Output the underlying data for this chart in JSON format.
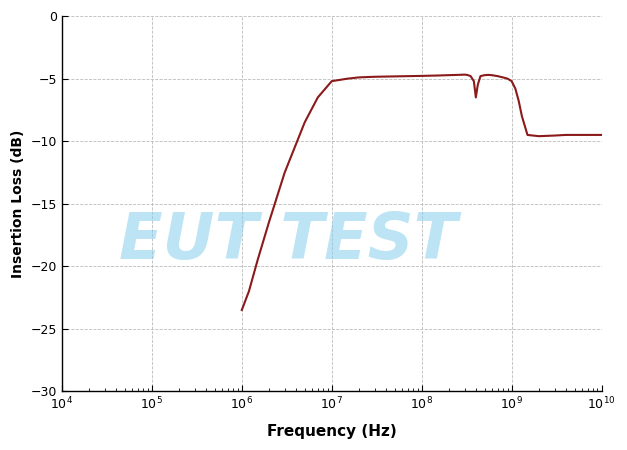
{
  "title": "",
  "xlabel": "Frequency (Hz)",
  "ylabel": "Insertion Loss (dB)",
  "xlim_log": [
    4,
    10
  ],
  "ylim": [
    -30,
    0
  ],
  "yticks": [
    0,
    -5,
    -10,
    -15,
    -20,
    -25,
    -30
  ],
  "line_color": "#8B1A1A",
  "line_width": 1.5,
  "watermark_text": "EUT TEST",
  "watermark_color": "#87CEEB",
  "watermark_alpha": 0.55,
  "background_color": "#ffffff",
  "grid_color": "#bbbbbb",
  "curve_x": [
    1000000.0,
    1200000.0,
    1500000.0,
    2000000.0,
    3000000.0,
    5000000.0,
    7000000.0,
    10000000.0,
    15000000.0,
    20000000.0,
    30000000.0,
    50000000.0,
    70000000.0,
    100000000.0,
    150000000.0,
    200000000.0,
    250000000.0,
    300000000.0,
    320000000.0,
    350000000.0,
    380000000.0,
    400000000.0,
    420000000.0,
    450000000.0,
    500000000.0,
    550000000.0,
    600000000.0,
    700000000.0,
    800000000.0,
    900000000.0,
    1000000000.0,
    1100000000.0,
    1200000000.0,
    1300000000.0,
    1500000000.0,
    2000000000.0,
    3000000000.0,
    4000000000.0,
    5000000000.0,
    6000000000.0,
    7000000000.0,
    8000000000.0,
    9000000000.0,
    10000000000.0
  ],
  "curve_y": [
    -23.5,
    -22.0,
    -19.5,
    -16.5,
    -12.5,
    -8.5,
    -6.5,
    -5.2,
    -5.0,
    -4.9,
    -4.85,
    -4.82,
    -4.8,
    -4.78,
    -4.75,
    -4.72,
    -4.7,
    -4.68,
    -4.7,
    -4.8,
    -5.2,
    -6.5,
    -5.5,
    -4.8,
    -4.72,
    -4.7,
    -4.72,
    -4.8,
    -4.9,
    -5.0,
    -5.2,
    -5.8,
    -6.8,
    -8.0,
    -9.5,
    -9.6,
    -9.55,
    -9.5,
    -9.5,
    -9.5,
    -9.5,
    -9.5,
    -9.5,
    -9.5
  ]
}
